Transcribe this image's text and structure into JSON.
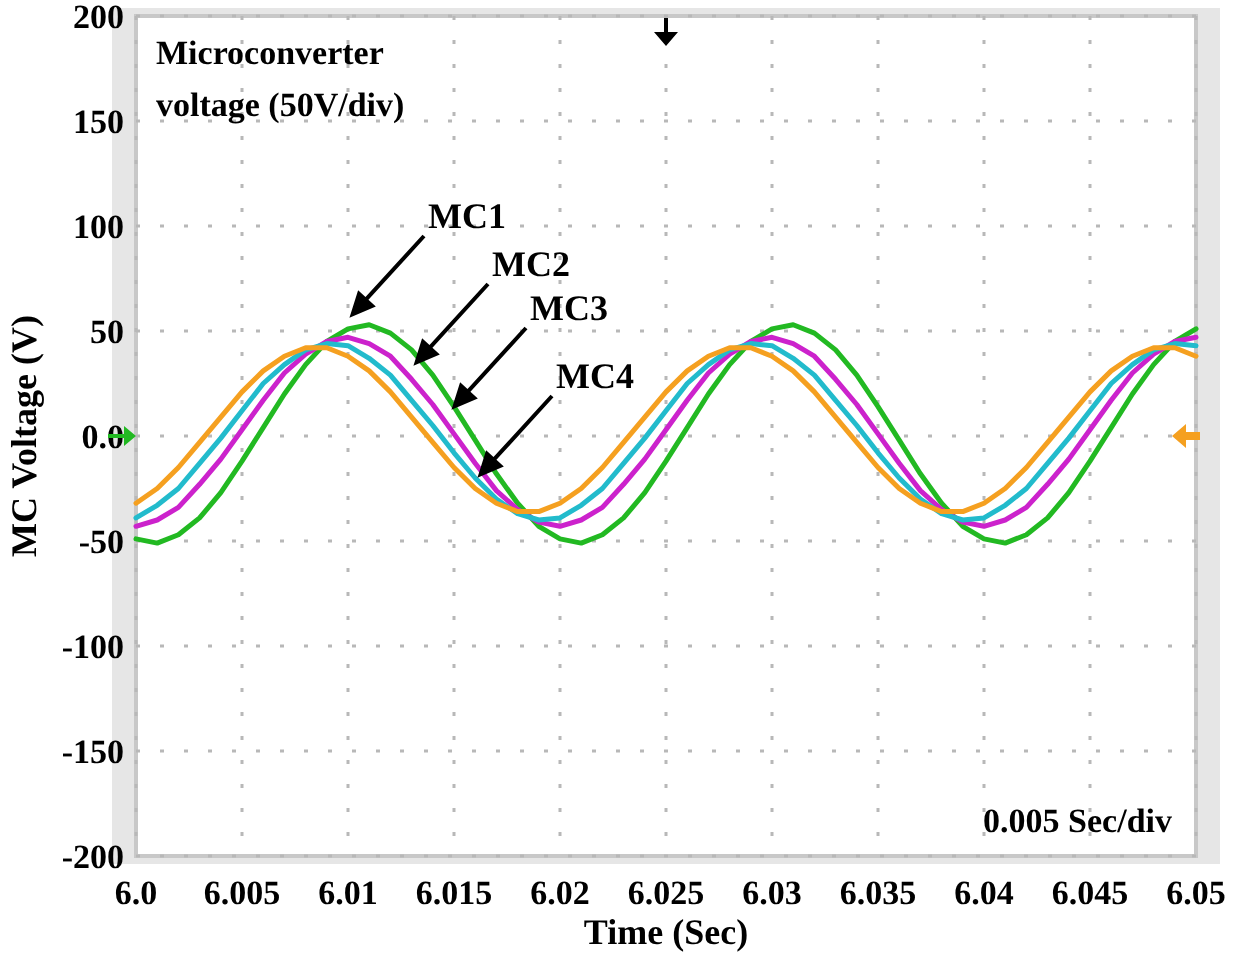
{
  "chart_data": {
    "type": "line",
    "xlabel": "Time (Sec)",
    "ylabel": "MC Voltage (V)",
    "x": [
      6.0,
      6.001,
      6.002,
      6.003,
      6.004,
      6.005,
      6.006,
      6.007,
      6.008,
      6.009,
      6.01,
      6.011,
      6.012,
      6.013,
      6.014,
      6.015,
      6.016,
      6.017,
      6.018,
      6.019,
      6.02,
      6.021,
      6.022,
      6.023,
      6.024,
      6.025,
      6.026,
      6.027,
      6.028,
      6.029,
      6.03,
      6.031,
      6.032,
      6.033,
      6.034,
      6.035,
      6.036,
      6.037,
      6.038,
      6.039,
      6.04,
      6.041,
      6.042,
      6.043,
      6.044,
      6.045,
      6.046,
      6.047,
      6.048,
      6.049,
      6.05
    ],
    "series": [
      {
        "color": "#22b922",
        "values": [
          -49,
          -51,
          -47,
          -39,
          -27,
          -12,
          4,
          20,
          34,
          45,
          51,
          53,
          49,
          41,
          29,
          14,
          -2,
          -18,
          -32,
          -43,
          -49,
          -51,
          -47,
          -39,
          -27,
          -12,
          4,
          20,
          34,
          45,
          51,
          53,
          49,
          41,
          29,
          14,
          -2,
          -18,
          -32,
          -43,
          -49,
          -51,
          -47,
          -39,
          -27,
          -12,
          4,
          20,
          34,
          45,
          51
        ]
      },
      {
        "color": "#cc22cc",
        "values": [
          -43,
          -40,
          -34,
          -23,
          -11,
          3,
          17,
          30,
          39,
          45,
          47,
          44,
          38,
          27,
          15,
          1,
          -13,
          -26,
          -35,
          -41,
          -43,
          -40,
          -34,
          -23,
          -11,
          3,
          17,
          30,
          39,
          45,
          47,
          44,
          38,
          27,
          15,
          1,
          -13,
          -26,
          -35,
          -41,
          -43,
          -40,
          -34,
          -23,
          -11,
          3,
          17,
          30,
          39,
          45,
          47
        ]
      },
      {
        "color": "#22bbcc",
        "values": [
          -39,
          -33,
          -25,
          -13,
          -1,
          12,
          25,
          34,
          41,
          44,
          43,
          37,
          29,
          17,
          5,
          -8,
          -20,
          -30,
          -37,
          -40,
          -39,
          -33,
          -25,
          -13,
          -1,
          12,
          25,
          34,
          41,
          44,
          43,
          37,
          29,
          17,
          5,
          -8,
          -20,
          -30,
          -37,
          -40,
          -39,
          -33,
          -25,
          -13,
          -1,
          12,
          25,
          34,
          41,
          44,
          43
        ]
      },
      {
        "color": "#f5a020",
        "values": [
          -32,
          -25,
          -15,
          -3,
          9,
          21,
          31,
          38,
          42,
          42,
          38,
          31,
          21,
          9,
          -3,
          -15,
          -25,
          -32,
          -36,
          -36,
          -32,
          -25,
          -15,
          -3,
          9,
          21,
          31,
          38,
          42,
          42,
          38,
          31,
          21,
          9,
          -3,
          -15,
          -25,
          -32,
          -36,
          -36,
          -32,
          -25,
          -15,
          -3,
          9,
          21,
          31,
          38,
          42,
          42,
          38
        ]
      }
    ],
    "xlim": [
      6.0,
      6.05
    ],
    "xticks": [
      {
        "value": 6.0,
        "label": "6.0"
      },
      6.005,
      6.01,
      6.015,
      6.02,
      6.025,
      6.03,
      6.035,
      6.04,
      6.045,
      6.05
    ],
    "ylim": [
      -200,
      200
    ],
    "yticks": [
      -200,
      -150,
      -100,
      -50,
      {
        "value": 0,
        "label": "0.0"
      },
      50,
      100,
      150,
      200
    ],
    "grid": true,
    "line_style": "solid",
    "marker": "none",
    "annotations": [
      "MC1",
      "MC2",
      "MC3",
      "MC4",
      "Microconverter voltage (50V/div)",
      "0.005 Sec/div"
    ]
  }
}
